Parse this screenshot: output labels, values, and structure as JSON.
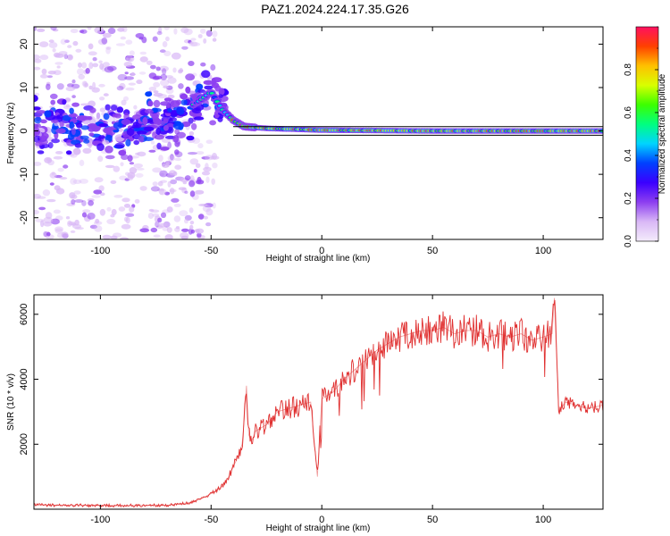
{
  "figure_title": "PAZ1.2024.224.17.35.G26",
  "chart_data": [
    {
      "type": "heatmap",
      "xlabel": "Height of straight line (km)",
      "ylabel": "Frequency (Hz)",
      "xlim": [
        -130,
        127
      ],
      "ylim": [
        -25,
        24
      ],
      "x_ticks": [
        -100,
        -50,
        0,
        50,
        100
      ],
      "y_ticks": [
        -20,
        -10,
        0,
        10,
        20
      ],
      "colorbar": {
        "label": "Normalized spectral amplitude",
        "range": [
          0,
          1
        ],
        "ticks": [
          "0.0",
          "0.2",
          "0.4",
          "0.6",
          "0.8"
        ],
        "colors": [
          "#f4ecfb",
          "#d9b8f6",
          "#8d3ff0",
          "#3b00ff",
          "#0040ff",
          "#00d4ff",
          "#00ff80",
          "#3cff00",
          "#d8ff00",
          "#ffc000",
          "#ff4000",
          "#ff1060"
        ]
      },
      "ridge": [
        {
          "x": -130,
          "y": 0.5
        },
        {
          "x": -110,
          "y": 0.8
        },
        {
          "x": -90,
          "y": 0.3
        },
        {
          "x": -70,
          "y": 2.5
        },
        {
          "x": -55,
          "y": 7
        },
        {
          "x": -50,
          "y": 9
        },
        {
          "x": -45,
          "y": 5
        },
        {
          "x": -40,
          "y": 2.5
        },
        {
          "x": -35,
          "y": 1
        },
        {
          "x": -25,
          "y": 0.6
        },
        {
          "x": 0,
          "y": 0.2
        },
        {
          "x": 50,
          "y": 0
        },
        {
          "x": 127,
          "y": 0
        }
      ],
      "tracking_band": {
        "upper": 1,
        "lower": -1,
        "from_x": -40
      }
    },
    {
      "type": "line",
      "xlabel": "Height of straight line (km)",
      "ylabel": "SNR (10 * v/v)",
      "xlim": [
        -130,
        127
      ],
      "ylim": [
        0,
        6600
      ],
      "x_ticks": [
        -100,
        -50,
        0,
        50,
        100
      ],
      "y_ticks": [
        2000,
        4000,
        6000
      ],
      "series": [
        {
          "color": "#e03030",
          "x": [
            -130,
            -110,
            -90,
            -70,
            -60,
            -55,
            -50,
            -45,
            -42,
            -40,
            -38,
            -36,
            -35,
            -34,
            -33,
            -32,
            -31,
            -30,
            -25,
            -20,
            -15,
            -10,
            -5,
            -2,
            0,
            5,
            10,
            15,
            20,
            25,
            30,
            35,
            40,
            45,
            50,
            55,
            60,
            65,
            70,
            75,
            80,
            85,
            90,
            95,
            100,
            104,
            105,
            106,
            107,
            110,
            115,
            120,
            127
          ],
          "y": [
            130,
            120,
            110,
            120,
            200,
            300,
            480,
            700,
            1000,
            1300,
            1600,
            2000,
            2800,
            3800,
            2300,
            2100,
            2200,
            2400,
            2600,
            3000,
            3100,
            3200,
            3300,
            1000,
            3400,
            3600,
            4000,
            4300,
            4600,
            4900,
            5100,
            5300,
            5400,
            5500,
            5500,
            5600,
            5400,
            5500,
            5500,
            5300,
            5400,
            5300,
            5400,
            5200,
            5300,
            5400,
            6500,
            4800,
            3000,
            3300,
            3200,
            3100,
            3200
          ]
        }
      ]
    }
  ]
}
